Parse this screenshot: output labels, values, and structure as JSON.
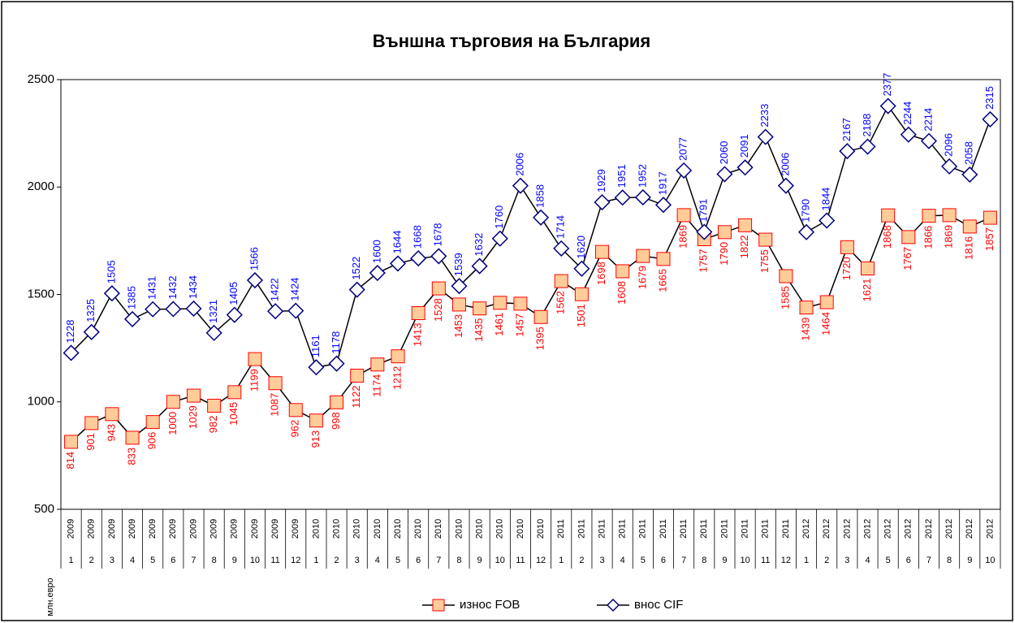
{
  "chart_data": {
    "type": "line",
    "title": "Външна търговия на България",
    "y_label": "млн.евро",
    "categories": [
      "1",
      "2",
      "3",
      "4",
      "5",
      "6",
      "7",
      "8",
      "9",
      "10",
      "11",
      "12",
      "1",
      "2",
      "3",
      "4",
      "5",
      "6",
      "7",
      "8",
      "9",
      "10",
      "11",
      "12",
      "1",
      "2",
      "3",
      "4",
      "5",
      "6",
      "7",
      "8",
      "9",
      "10",
      "11",
      "12",
      "1",
      "2",
      "3",
      "4",
      "5",
      "6",
      "7",
      "8",
      "9",
      "10"
    ],
    "category_years": [
      "2009",
      "2009",
      "2009",
      "2009",
      "2009",
      "2009",
      "2009",
      "2009",
      "2009",
      "2009",
      "2009",
      "2009",
      "2010",
      "2010",
      "2010",
      "2010",
      "2010",
      "2010",
      "2010",
      "2010",
      "2010",
      "2010",
      "2010",
      "2010",
      "2011",
      "2011",
      "2011",
      "2011",
      "2011",
      "2011",
      "2011",
      "2011",
      "2011",
      "2011",
      "2011",
      "2011",
      "2012",
      "2012",
      "2012",
      "2012",
      "2012",
      "2012",
      "2012",
      "2012",
      "2012",
      "2012"
    ],
    "series": [
      {
        "name": "износ FOB",
        "color": "#ff0000",
        "marker": "square",
        "marker_fill": "#ffcc99",
        "values": [
          814,
          901,
          943,
          833,
          906,
          1000,
          1029,
          982,
          1045,
          1199,
          1087,
          962,
          913,
          998,
          1122,
          1174,
          1212,
          1413,
          1528,
          1453,
          1435,
          1461,
          1457,
          1395,
          1562,
          1501,
          1698,
          1608,
          1679,
          1665,
          1869,
          1757,
          1790,
          1822,
          1755,
          1585,
          1439,
          1464,
          1720,
          1621,
          1868,
          1767,
          1866,
          1869,
          1816,
          1857
        ]
      },
      {
        "name": "внос CIF",
        "color": "#0000ff",
        "marker": "diamond",
        "marker_fill": "#ffffff",
        "values": [
          1228,
          1325,
          1505,
          1385,
          1431,
          1432,
          1434,
          1321,
          1405,
          1566,
          1422,
          1424,
          1161,
          1178,
          1522,
          1600,
          1644,
          1668,
          1678,
          1539,
          1632,
          1760,
          2006,
          1858,
          1714,
          1620,
          1929,
          1951,
          1952,
          1917,
          2077,
          1791,
          2060,
          2091,
          2233,
          2006,
          1790,
          1844,
          2167,
          2188,
          2377,
          2244,
          2214,
          2096,
          2058,
          2315
        ]
      }
    ],
    "ylim": [
      500,
      2500
    ],
    "yticks": [
      500,
      1000,
      1500,
      2000,
      2500
    ],
    "legend": "bottom",
    "grid": false
  }
}
